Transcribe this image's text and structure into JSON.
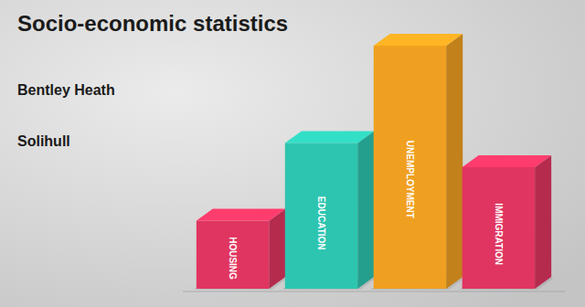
{
  "chart_data": {
    "type": "bar",
    "title": "Socio-economic statistics",
    "subtitle": [
      "Bentley Heath",
      "Solihull"
    ],
    "categories": [
      "HOUSING",
      "EDUCATION",
      "UNEMPLOYMENT",
      "IMMIGRATION"
    ],
    "values": [
      0.28,
      0.6,
      1.0,
      0.5
    ],
    "colors": [
      "#e03560",
      "#2dc5b0",
      "#f0a020",
      "#e03560"
    ],
    "ylim": [
      0,
      1
    ],
    "tick_labels": false,
    "grid": false
  }
}
